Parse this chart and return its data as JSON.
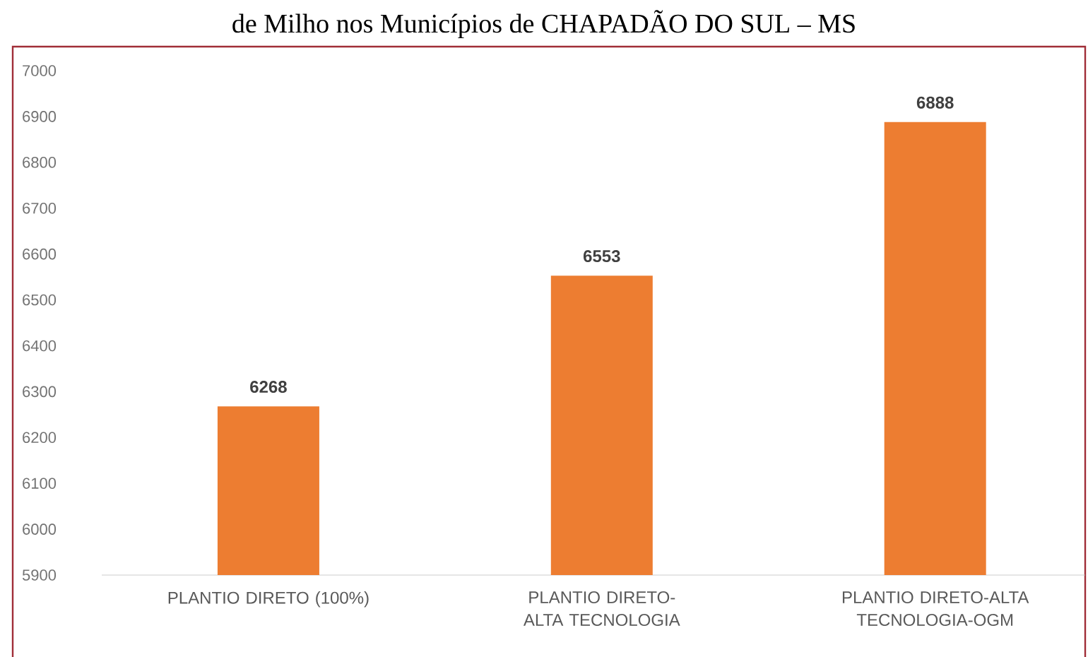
{
  "chart_data": {
    "type": "bar",
    "title": "de Milho nos Municípios de CHAPADÃO DO SUL – MS",
    "categories": [
      "PLANTIO DIRETO (100%)",
      "PLANTIO DIRETO-ALTA TECNOLOGIA",
      "PLANTIO DIRETO-ALTA TECNOLOGIA-OGM"
    ],
    "values": [
      6268,
      6553,
      6888
    ],
    "color": "#ed7d31",
    "data_labels": true,
    "ylim": [
      5900,
      7000
    ],
    "yticks": [
      5900,
      6000,
      6100,
      6200,
      6300,
      6400,
      6500,
      6600,
      6700,
      6800,
      6900,
      7000
    ],
    "grid": false
  }
}
